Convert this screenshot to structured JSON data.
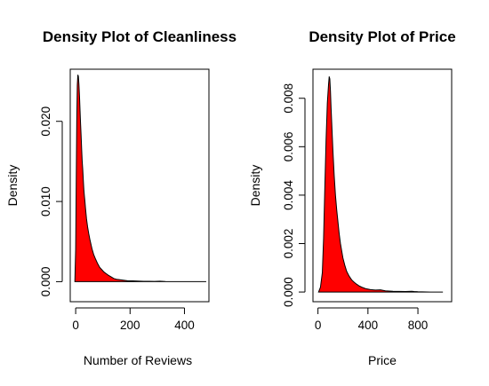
{
  "chart_data": [
    {
      "type": "area",
      "title": "Density Plot of Cleanliness",
      "xlabel": "Number of Reviews",
      "ylabel": "Density",
      "xlim": [
        -20,
        490
      ],
      "ylim": [
        -0.0025,
        0.0265
      ],
      "xticks": [
        0,
        200,
        400
      ],
      "yticks": [
        0.0,
        0.01,
        0.02
      ],
      "ytick_labels": [
        "0.000",
        "0.010",
        "0.020"
      ],
      "fill_color": "#ff0000",
      "line_color": "#000000",
      "series": [
        {
          "x": [
            -3,
            0,
            2,
            4,
            6,
            8,
            10,
            12,
            14,
            16,
            18,
            20,
            22,
            24,
            26,
            28,
            30,
            32,
            34,
            36,
            38,
            40,
            44,
            48,
            52,
            56,
            60,
            66,
            72,
            80,
            88,
            96,
            104,
            112,
            120,
            130,
            140,
            150,
            160,
            175,
            190,
            210,
            230,
            250,
            270,
            290,
            310,
            330,
            360,
            400,
            450,
            480
          ],
          "y": [
            0,
            0.004,
            0.012,
            0.02,
            0.0245,
            0.0258,
            0.0256,
            0.0246,
            0.0232,
            0.0214,
            0.0197,
            0.0182,
            0.0165,
            0.015,
            0.014,
            0.0127,
            0.0115,
            0.0107,
            0.01,
            0.0092,
            0.0085,
            0.0078,
            0.0068,
            0.006,
            0.0053,
            0.0047,
            0.0041,
            0.0034,
            0.0029,
            0.0023,
            0.0018,
            0.0015,
            0.0012,
            0.001,
            0.0008,
            0.0006,
            0.0004,
            0.0003,
            0.00025,
            0.00018,
            0.00012,
            0.0001,
            8e-05,
            5e-05,
            4e-05,
            3e-05,
            6e-05,
            2e-05,
            1e-05,
            5e-06,
            0.0,
            0.0
          ]
        }
      ]
    },
    {
      "type": "area",
      "title": "Density Plot of Price",
      "xlabel": "Price",
      "ylabel": "Density",
      "xlim": [
        -40,
        1070
      ],
      "ylim": [
        -0.0004,
        0.0092
      ],
      "xticks": [
        0,
        400,
        800
      ],
      "yticks": [
        0.0,
        0.002,
        0.004,
        0.006,
        0.008
      ],
      "ytick_labels": [
        "0.000",
        "0.002",
        "0.004",
        "0.006",
        "0.008"
      ],
      "fill_color": "#ff0000",
      "line_color": "#000000",
      "series": [
        {
          "x": [
            5,
            20,
            35,
            45,
            55,
            65,
            75,
            85,
            90,
            95,
            100,
            105,
            110,
            115,
            120,
            130,
            140,
            150,
            160,
            170,
            180,
            190,
            200,
            215,
            230,
            250,
            270,
            290,
            310,
            330,
            350,
            380,
            420,
            460,
            500,
            540,
            600,
            700,
            750,
            770,
            800,
            900,
            1000
          ],
          "y": [
            0,
            0.0002,
            0.0008,
            0.0022,
            0.0043,
            0.0063,
            0.0078,
            0.0086,
            0.0089,
            0.0088,
            0.0083,
            0.0076,
            0.007,
            0.0064,
            0.0058,
            0.0048,
            0.004,
            0.0034,
            0.0029,
            0.0024,
            0.002,
            0.0017,
            0.0014,
            0.0011,
            0.00085,
            0.00065,
            0.0005,
            0.0004,
            0.00032,
            0.00025,
            0.0002,
            0.00014,
            0.0001,
            8e-05,
            9e-05,
            5e-05,
            3e-05,
            2e-05,
            3e-05,
            2e-05,
            1e-05,
            0.0,
            0.0
          ]
        }
      ]
    }
  ]
}
